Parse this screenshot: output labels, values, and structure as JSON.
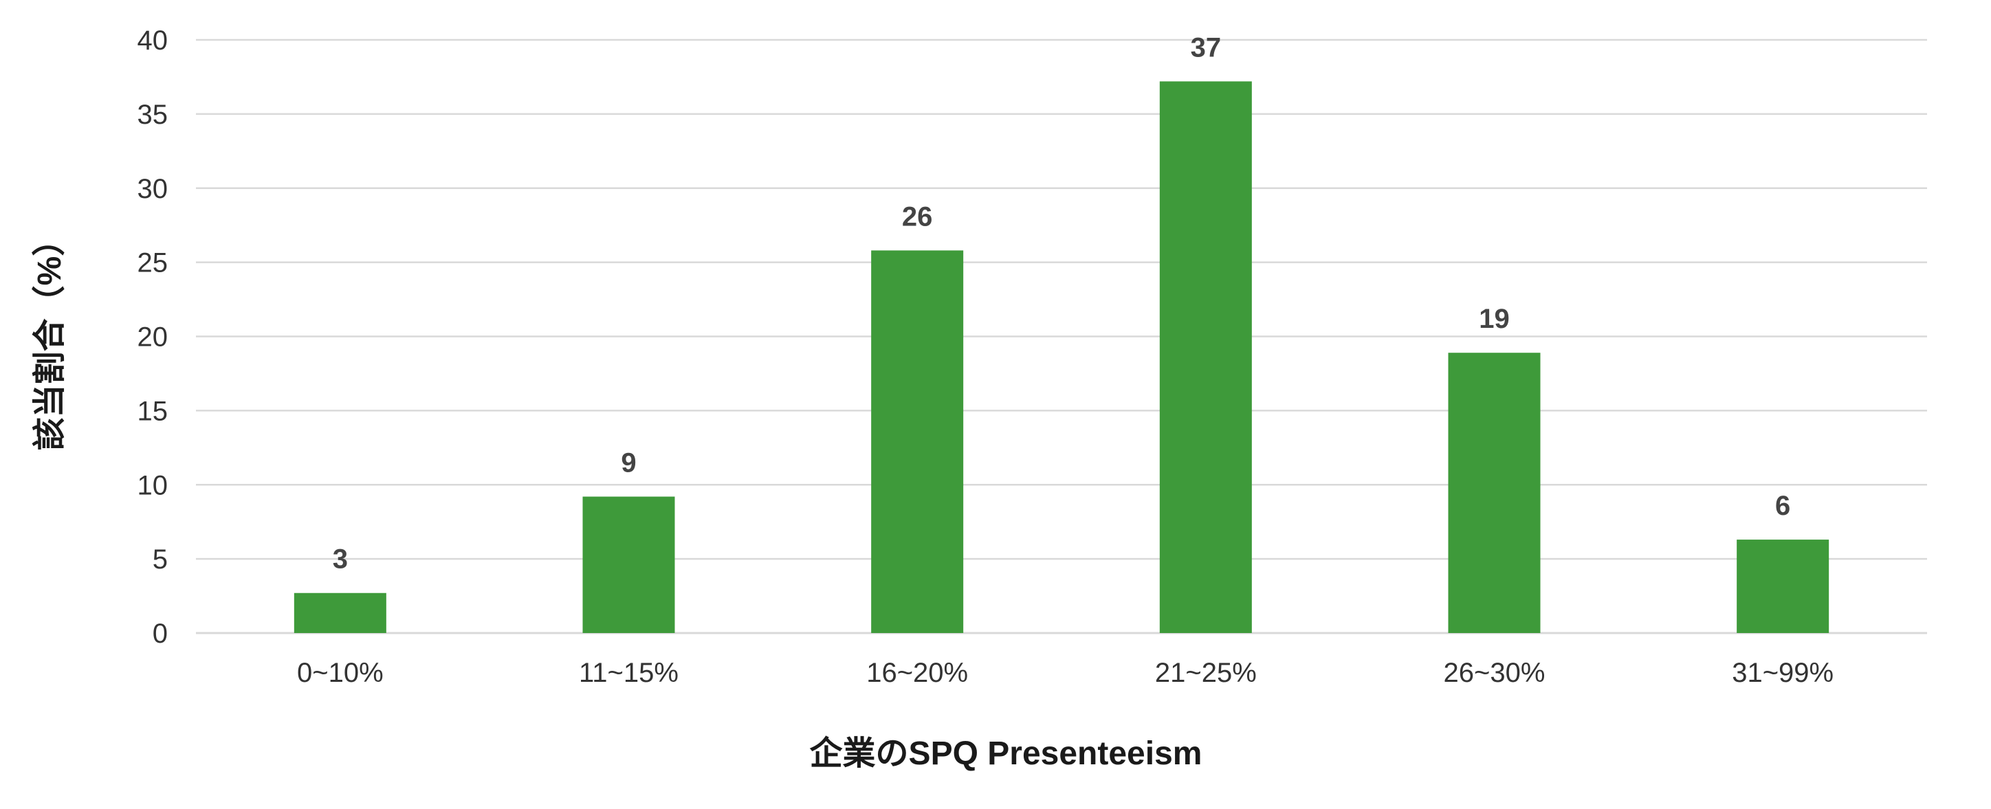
{
  "chart_data": {
    "type": "bar",
    "categories": [
      "0~10%",
      "11~15%",
      "16~20%",
      "21~25%",
      "26~30%",
      "31~99%"
    ],
    "values": [
      2.7,
      9.2,
      25.8,
      37.2,
      18.9,
      6.3
    ],
    "data_labels": [
      "3",
      "9",
      "26",
      "37",
      "19",
      "6"
    ],
    "title": "",
    "xlabel": "企業のSPQ Presenteeism",
    "ylabel": "該当割合（%）",
    "ylim": [
      0,
      40
    ],
    "yticks": [
      "0",
      "5",
      "10",
      "15",
      "20",
      "25",
      "30",
      "35",
      "40"
    ],
    "grid": true,
    "legend": "none",
    "bar_color": "#3e9a3a"
  }
}
